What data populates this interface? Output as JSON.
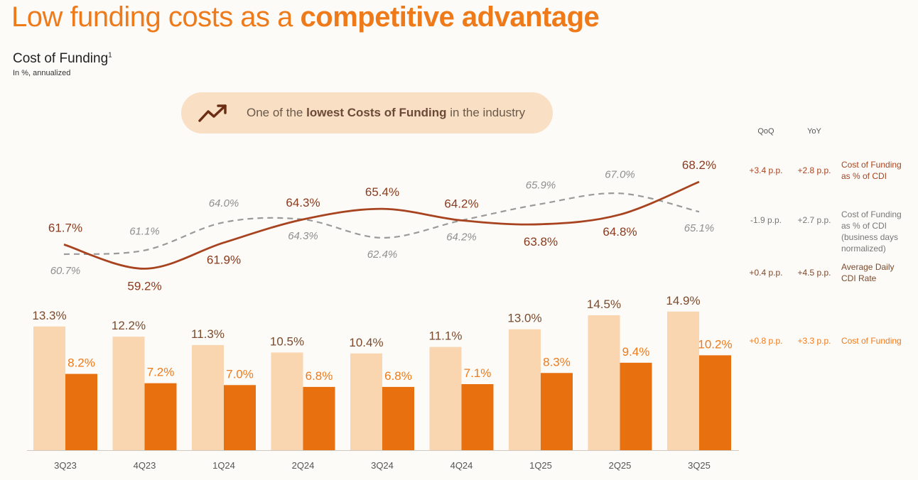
{
  "header": {
    "title_normal": "Low funding costs as a ",
    "title_bold": "competitive advantage",
    "chart_title": "Cost of Funding",
    "chart_title_sup": "1",
    "chart_note": "In %, annualized"
  },
  "callout": {
    "icon": "trend-up-icon",
    "text_pre": "One of the ",
    "text_bold": "lowest Costs of Funding",
    "text_post": " in the industry"
  },
  "colors": {
    "accent": "#ee7a1a",
    "bar_light": "#f9d5b0",
    "bar_dark": "#e8700f",
    "line_solid": "#a8431f",
    "line_dashed": "#9a9a9a",
    "pill_bg": "#f9dfc3"
  },
  "chart_data": {
    "type": "bar",
    "categories": [
      "3Q23",
      "4Q23",
      "1Q24",
      "2Q24",
      "3Q24",
      "4Q24",
      "1Q25",
      "2Q25",
      "3Q25"
    ],
    "series": [
      {
        "name": "Average Daily CDI Rate",
        "kind": "bar",
        "values": [
          13.3,
          12.2,
          11.3,
          10.5,
          10.4,
          11.1,
          13.0,
          14.5,
          14.9
        ],
        "labels": [
          "13.3%",
          "12.2%",
          "11.3%",
          "10.5%",
          "10.4%",
          "11.1%",
          "13.0%",
          "14.5%",
          "14.9%"
        ]
      },
      {
        "name": "Cost of Funding",
        "kind": "bar",
        "values": [
          8.2,
          7.2,
          7.0,
          6.8,
          6.8,
          7.1,
          8.3,
          9.4,
          10.2
        ],
        "labels": [
          "8.2%",
          "7.2%",
          "7.0%",
          "6.8%",
          "6.8%",
          "7.1%",
          "8.3%",
          "9.4%",
          "10.2%"
        ]
      },
      {
        "name": "Cost of Funding as % of CDI",
        "kind": "line",
        "values": [
          61.7,
          59.2,
          61.9,
          64.3,
          65.4,
          64.2,
          63.8,
          64.8,
          68.2
        ],
        "labels": [
          "61.7%",
          "59.2%",
          "61.9%",
          "64.3%",
          "65.4%",
          "64.2%",
          "63.8%",
          "64.8%",
          "68.2%"
        ]
      },
      {
        "name": "Cost of Funding as % of CDI (business days normalized)",
        "kind": "line-dashed",
        "values": [
          60.7,
          61.1,
          64.0,
          64.3,
          62.4,
          64.2,
          65.9,
          67.0,
          65.1
        ],
        "labels": [
          "60.7%",
          "61.1%",
          "64.0%",
          "64.3%",
          "62.4%",
          "64.2%",
          "65.9%",
          "67.0%",
          "65.1%"
        ]
      }
    ],
    "legend_headers": {
      "qoq": "QoQ",
      "yoy": "YoY"
    },
    "legend": [
      {
        "qoq": "+3.4 p.p.",
        "yoy": "+2.8 p.p.",
        "label_lines": [
          "Cost of Funding",
          "as % of CDI"
        ]
      },
      {
        "qoq": "-1.9 p.p.",
        "yoy": "+2.7 p.p.",
        "label_lines": [
          "Cost of Funding",
          "as % of CDI",
          "(business days",
          "normalized)"
        ]
      },
      {
        "qoq": "+0.4 p.p.",
        "yoy": "+4.5 p.p.",
        "label_lines": [
          "Average Daily",
          "CDI Rate"
        ]
      },
      {
        "qoq": "+0.8 p.p.",
        "yoy": "+3.3 p.p.",
        "label_lines": [
          "Cost of Funding"
        ]
      }
    ]
  }
}
